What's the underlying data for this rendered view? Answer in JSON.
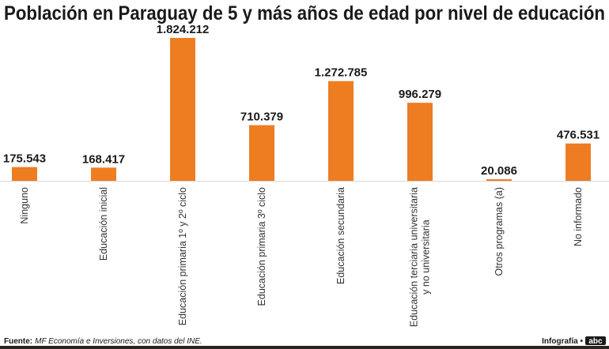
{
  "chart_data": {
    "type": "bar",
    "title": "Población en Paraguay de 5 y más años de edad por nivel de educación",
    "categories": [
      [
        "Ninguno"
      ],
      [
        "Educación inicial"
      ],
      [
        "Educación primaria 1º y 2º ciclo"
      ],
      [
        "Educación primaria 3º ciclo"
      ],
      [
        "Educación secundaria"
      ],
      [
        "Educación terciaria universitaria",
        "y no universitaria"
      ],
      [
        "Otros programas  (a)"
      ],
      [
        "No informado"
      ]
    ],
    "values": [
      175543,
      168417,
      1824212,
      710379,
      1272785,
      996279,
      20086,
      476531
    ],
    "value_labels": [
      "175.543",
      "168.417",
      "1.824.212",
      "710.379",
      "1.272.785",
      "996.279",
      "20.086",
      "476.531"
    ],
    "xlabel": "",
    "ylabel": "",
    "ylim": [
      0,
      1824212
    ],
    "grid": false,
    "bar_color": "#ee7d22"
  },
  "footer": {
    "source_label": "Fuente:",
    "source_text": "MF Economía e Inversiones, con datos del INE.",
    "credit": "Infografía •",
    "logo": "abc"
  }
}
